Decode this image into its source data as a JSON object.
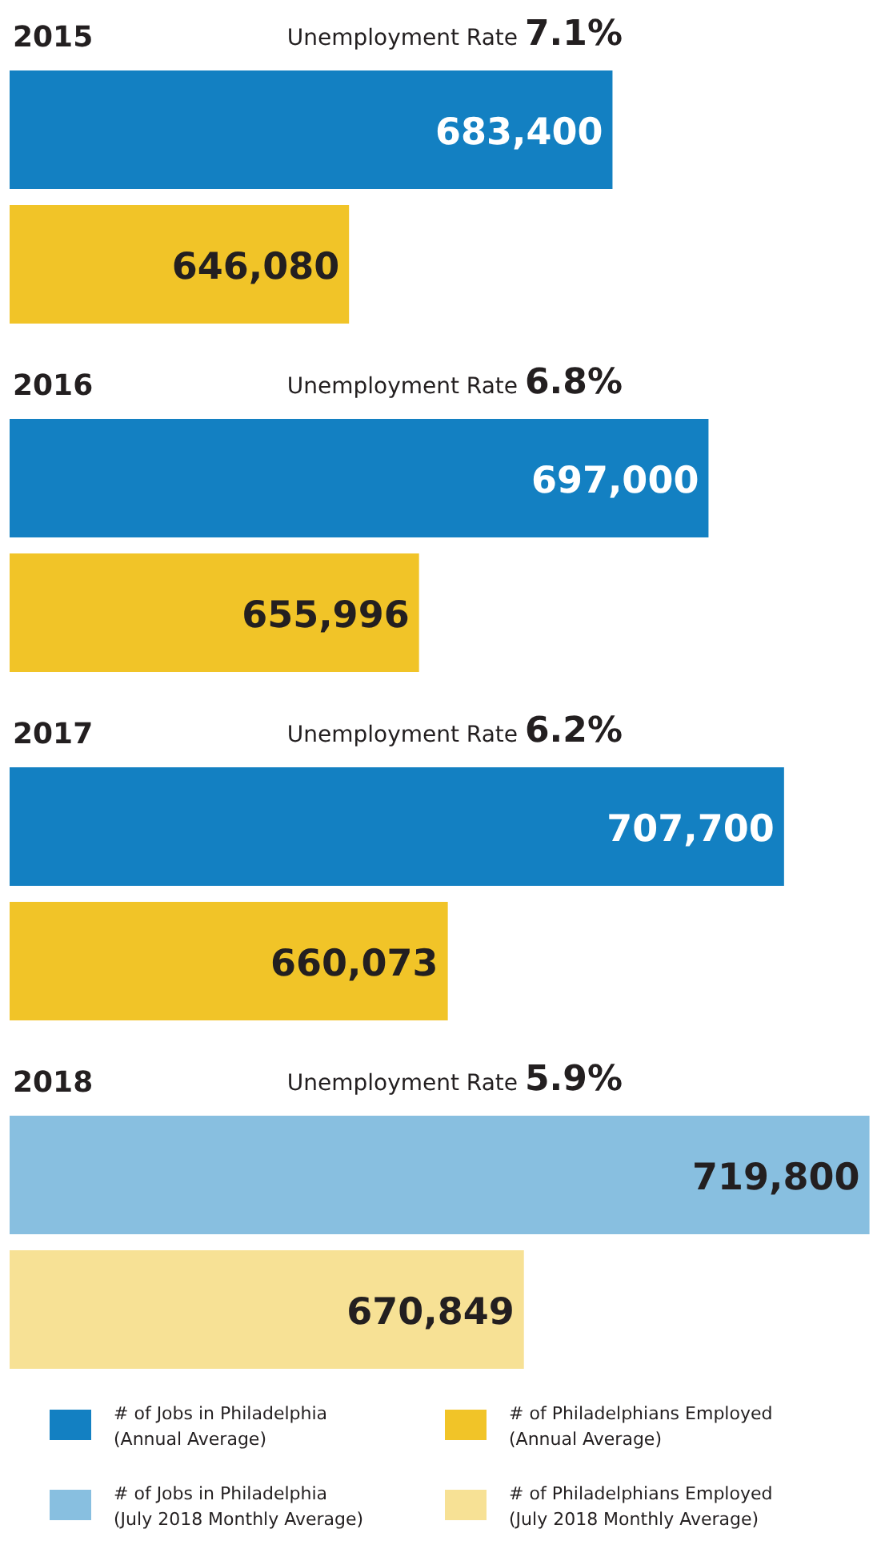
{
  "chart_data": {
    "type": "bar",
    "orientation": "horizontal",
    "categories": [
      "2015",
      "2016",
      "2017",
      "2018"
    ],
    "series": [
      {
        "name": "# of Jobs in Philadelphia (Annual Average)",
        "color": "#1380c2",
        "values": [
          683400,
          697000,
          707700,
          null
        ],
        "value_labels": [
          "683,400",
          "697,000",
          "707,700",
          null
        ]
      },
      {
        "name": "# of Philadelphians Employed (Annual Average)",
        "color": "#f1c428",
        "values": [
          646080,
          655996,
          660073,
          null
        ],
        "value_labels": [
          "646,080",
          "655,996",
          "660,073",
          null
        ]
      },
      {
        "name": "# of Jobs in Philadelphia (July 2018 Monthly Average)",
        "color": "#88bfe0",
        "values": [
          null,
          null,
          null,
          719800
        ],
        "value_labels": [
          null,
          null,
          null,
          "719,800"
        ]
      },
      {
        "name": "# of Philadelphians Employed (July 2018 Monthly Average)",
        "color": "#f7e195",
        "values": [
          null,
          null,
          null,
          670849
        ],
        "value_labels": [
          null,
          null,
          null,
          "670,849"
        ]
      }
    ],
    "xlim": [
      598000,
      722000
    ],
    "legend": "bottom",
    "annotations": [
      "Unemployment Rate 7.1%",
      "Unemployment Rate 6.8%",
      "Unemployment Rate 6.2%",
      "Unemployment Rate 5.9%"
    ]
  }
}
